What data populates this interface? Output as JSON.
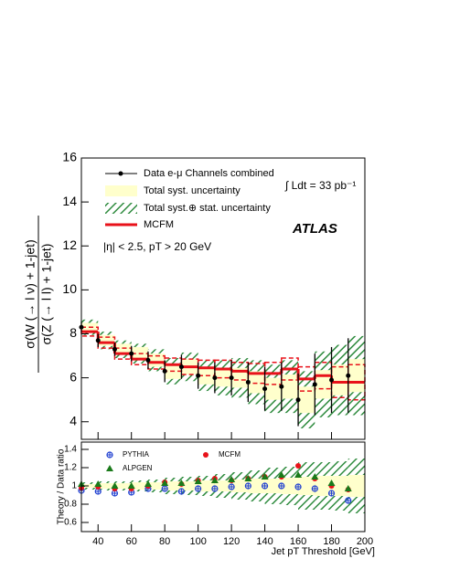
{
  "chart_data": [
    {
      "type": "errorbar",
      "ylabel_numerator": "σ(W (→ l ν) + 1-jet)",
      "ylabel_denominator": "σ(Z (→ l l) + 1-jet)",
      "annotation": "|η| < 2.5, pT > 20 GeV",
      "luminosity": "∫ Ldt = 33 pb⁻¹",
      "experiment": "ATLAS",
      "x": [
        30,
        40,
        50,
        60,
        70,
        80,
        90,
        100,
        110,
        120,
        130,
        140,
        150,
        160,
        170,
        180,
        190
      ],
      "bins": [
        30,
        40,
        50,
        60,
        70,
        80,
        90,
        100,
        110,
        120,
        130,
        140,
        150,
        160,
        170,
        180,
        190,
        200
      ],
      "xlim": [
        30,
        200
      ],
      "ylim": [
        3.2,
        16
      ],
      "yticks": [
        4,
        6,
        8,
        10,
        12,
        14,
        16
      ],
      "series": [
        {
          "name": "Data e-μ Channels combined",
          "color": "#000000",
          "values": [
            8.3,
            7.7,
            7.3,
            7.1,
            6.8,
            6.3,
            6.5,
            6.1,
            6.0,
            6.0,
            5.8,
            5.5,
            5.6,
            5.0,
            5.7,
            5.9,
            6.1
          ],
          "errors": [
            0.25,
            0.3,
            0.3,
            0.35,
            0.4,
            0.5,
            0.55,
            0.6,
            0.7,
            0.8,
            0.9,
            1.0,
            1.1,
            1.2,
            1.4,
            1.5,
            1.7
          ]
        },
        {
          "name": "Total syst. uncertainty",
          "color": "#ffffcc",
          "errors": [
            0.2,
            0.25,
            0.25,
            0.3,
            0.3,
            0.35,
            0.35,
            0.4,
            0.4,
            0.45,
            0.5,
            0.5,
            0.55,
            0.6,
            0.65,
            0.7,
            0.75
          ]
        },
        {
          "name": "Total syst.⊕ stat. uncertainty",
          "color": "#2e8b3e",
          "errors": [
            0.35,
            0.4,
            0.4,
            0.45,
            0.5,
            0.6,
            0.65,
            0.7,
            0.8,
            0.9,
            1.0,
            1.1,
            1.2,
            1.3,
            1.5,
            1.6,
            1.8
          ]
        },
        {
          "name": "MCFM",
          "color": "#e8121a",
          "values": [
            8.1,
            7.6,
            7.1,
            6.85,
            6.7,
            6.6,
            6.5,
            6.45,
            6.4,
            6.3,
            6.2,
            6.2,
            6.4,
            5.95,
            6.1,
            5.8,
            5.8
          ],
          "errors": [
            0.2,
            0.25,
            0.25,
            0.25,
            0.3,
            0.3,
            0.35,
            0.35,
            0.4,
            0.4,
            0.45,
            0.5,
            0.5,
            0.55,
            0.6,
            0.7,
            0.8
          ]
        }
      ]
    },
    {
      "type": "ratio",
      "ylabel": "Theory / Data ratio",
      "xlabel": "Jet pT Threshold [GeV]",
      "x": [
        30,
        40,
        50,
        60,
        70,
        80,
        90,
        100,
        110,
        120,
        130,
        140,
        150,
        160,
        170,
        180,
        190
      ],
      "bins": [
        30,
        40,
        50,
        60,
        70,
        80,
        90,
        100,
        110,
        120,
        130,
        140,
        150,
        160,
        170,
        180,
        190,
        200
      ],
      "xlim": [
        30,
        200
      ],
      "xticks": [
        40,
        60,
        80,
        100,
        120,
        140,
        160,
        180,
        200
      ],
      "ylim": [
        0.5,
        1.48
      ],
      "yticks": [
        0.6,
        0.8,
        1,
        1.2,
        1.4
      ],
      "bands": [
        {
          "color": "#ffffcc",
          "values": [
            1,
            1,
            1,
            1,
            1,
            1,
            1,
            1,
            1,
            1,
            1,
            1,
            1,
            1,
            1,
            1,
            1
          ],
          "errors": [
            0.02,
            0.03,
            0.03,
            0.04,
            0.04,
            0.05,
            0.05,
            0.06,
            0.06,
            0.07,
            0.08,
            0.08,
            0.09,
            0.1,
            0.11,
            0.11,
            0.12
          ]
        },
        {
          "color": "#2e8b3e",
          "values": [
            1,
            1,
            1,
            1,
            1,
            1,
            1,
            1,
            1,
            1,
            1,
            1,
            1,
            1,
            1,
            1,
            1
          ],
          "errors": [
            0.04,
            0.05,
            0.05,
            0.06,
            0.07,
            0.09,
            0.1,
            0.11,
            0.13,
            0.15,
            0.17,
            0.2,
            0.21,
            0.26,
            0.26,
            0.27,
            0.3
          ]
        }
      ],
      "series": [
        {
          "name": "PYTHIA",
          "color": "#1f3fd1",
          "marker": "open-circle",
          "values": [
            0.95,
            0.94,
            0.92,
            0.93,
            0.97,
            0.97,
            0.94,
            0.97,
            0.97,
            0.99,
            1.0,
            1.0,
            1.0,
            0.99,
            0.97,
            0.92,
            0.84
          ]
        },
        {
          "name": "MCFM",
          "color": "#e8121a",
          "marker": "circle",
          "values": [
            0.98,
            0.99,
            0.97,
            0.97,
            1.0,
            1.04,
            1.02,
            1.06,
            1.08,
            1.06,
            1.08,
            1.1,
            1.1,
            1.22,
            1.08,
            1.0,
            0.96
          ]
        },
        {
          "name": "ALPGEN",
          "color": "#1a7a1a",
          "marker": "triangle",
          "values": [
            1.02,
            1.02,
            1.0,
            1.0,
            1.02,
            1.03,
            1.03,
            1.05,
            1.06,
            1.07,
            1.08,
            1.1,
            1.12,
            1.12,
            1.1,
            1.03,
            0.97
          ]
        }
      ]
    }
  ]
}
